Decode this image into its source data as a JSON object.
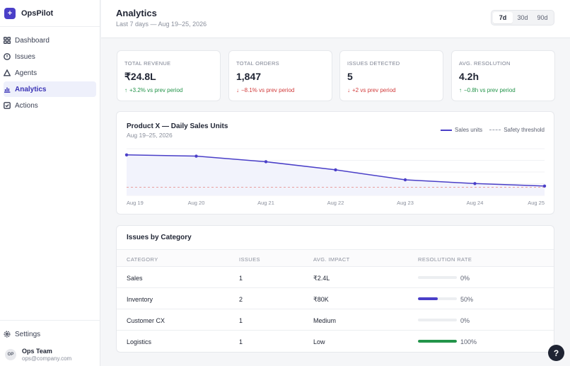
{
  "app": {
    "name": "OpsPilot",
    "logo_glyph": "+"
  },
  "sidebar": {
    "items": [
      {
        "label": "Dashboard",
        "icon": "grid-icon",
        "active": false
      },
      {
        "label": "Issues",
        "icon": "alert-circle-icon",
        "active": false
      },
      {
        "label": "Agents",
        "icon": "triangle-icon",
        "active": false
      },
      {
        "label": "Analytics",
        "icon": "bar-chart-icon",
        "active": true
      },
      {
        "label": "Actions",
        "icon": "check-square-icon",
        "active": false
      }
    ],
    "settings_label": "Settings",
    "user": {
      "initials": "OP",
      "name": "Ops Team",
      "email": "ops@company.com"
    }
  },
  "header": {
    "title": "Analytics",
    "subtitle": "Last 7 days — Aug 19–25, 2026",
    "ranges": [
      {
        "label": "7d",
        "active": true
      },
      {
        "label": "30d",
        "active": false
      },
      {
        "label": "90d",
        "active": false
      }
    ]
  },
  "kpis": [
    {
      "label": "TOTAL REVENUE",
      "value": "₹24.8L",
      "arrow": "↑",
      "delta": "+3.2% vs prev period",
      "trend": "up"
    },
    {
      "label": "TOTAL ORDERS",
      "value": "1,847",
      "arrow": "↓",
      "delta": "−8.1% vs prev period",
      "trend": "down"
    },
    {
      "label": "ISSUES DETECTED",
      "value": "5",
      "arrow": "↓",
      "delta": "+2 vs prev period",
      "trend": "down"
    },
    {
      "label": "AVG. RESOLUTION",
      "value": "4.2h",
      "arrow": "↑",
      "delta": "−0.8h vs prev period",
      "trend": "up"
    }
  ],
  "chart_data": {
    "type": "line",
    "title": "Product X — Daily Sales Units",
    "subtitle": "Aug 19–25, 2026",
    "categories": [
      "Aug 19",
      "Aug 20",
      "Aug 21",
      "Aug 22",
      "Aug 23",
      "Aug 24",
      "Aug 25"
    ],
    "series": [
      {
        "name": "Sales units",
        "values": [
          100,
          98,
          89,
          76,
          60,
          54,
          50
        ],
        "color": "#4a3fc8",
        "style": "solid"
      },
      {
        "name": "Safety threshold",
        "values": [
          48,
          48,
          48,
          48,
          48,
          48,
          48
        ],
        "color": "#e8a0a0",
        "style": "dashed"
      }
    ],
    "ylim": [
      35,
      110
    ],
    "grid": true,
    "legend_position": "top-right",
    "area_fill": "#f2f3fc"
  },
  "table": {
    "title": "Issues by Category",
    "columns": [
      "CATEGORY",
      "ISSUES",
      "AVG. IMPACT",
      "RESOLUTION RATE"
    ],
    "rows": [
      {
        "category": "Sales",
        "issues": "1",
        "impact": "₹2.4L",
        "rate": 0,
        "rate_label": "0%",
        "bar_color": "#4a3fc8"
      },
      {
        "category": "Inventory",
        "issues": "2",
        "impact": "₹80K",
        "rate": 0.5,
        "rate_label": "50%",
        "bar_color": "#4a3fc8"
      },
      {
        "category": "Customer CX",
        "issues": "1",
        "impact": "Medium",
        "rate": 0,
        "rate_label": "0%",
        "bar_color": "#4a3fc8"
      },
      {
        "category": "Logistics",
        "issues": "1",
        "impact": "Low",
        "rate": 1,
        "rate_label": "100%",
        "bar_color": "#23944a"
      }
    ]
  },
  "help": {
    "label": "?"
  },
  "colors": {
    "accent": "#4a3fc8",
    "up": "#23944a",
    "down": "#d13b3b"
  }
}
